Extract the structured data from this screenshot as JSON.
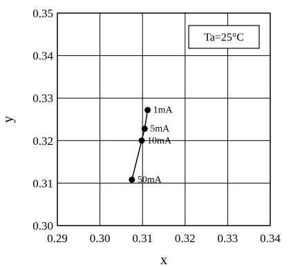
{
  "chart_data": {
    "type": "line",
    "title": "",
    "xlabel": "x",
    "ylabel": "y",
    "xlim": [
      0.29,
      0.34
    ],
    "ylim": [
      0.3,
      0.35
    ],
    "x_ticks": [
      "0.29",
      "0.30",
      "0.31",
      "0.32",
      "0.33",
      "0.34"
    ],
    "y_ticks": [
      "0.30",
      "0.31",
      "0.32",
      "0.33",
      "0.34",
      "0.35"
    ],
    "grid": true,
    "annotation_box": "Ta=25°C",
    "annotation_box_placement": "top-right",
    "series": [
      {
        "points": [
          {
            "x": 0.3112,
            "y": 0.3272,
            "label": "1mA"
          },
          {
            "x": 0.3105,
            "y": 0.3228,
            "label": "5mA"
          },
          {
            "x": 0.3098,
            "y": 0.32,
            "label": "10mA"
          },
          {
            "x": 0.3075,
            "y": 0.3108,
            "label": "50mA"
          }
        ]
      }
    ]
  }
}
